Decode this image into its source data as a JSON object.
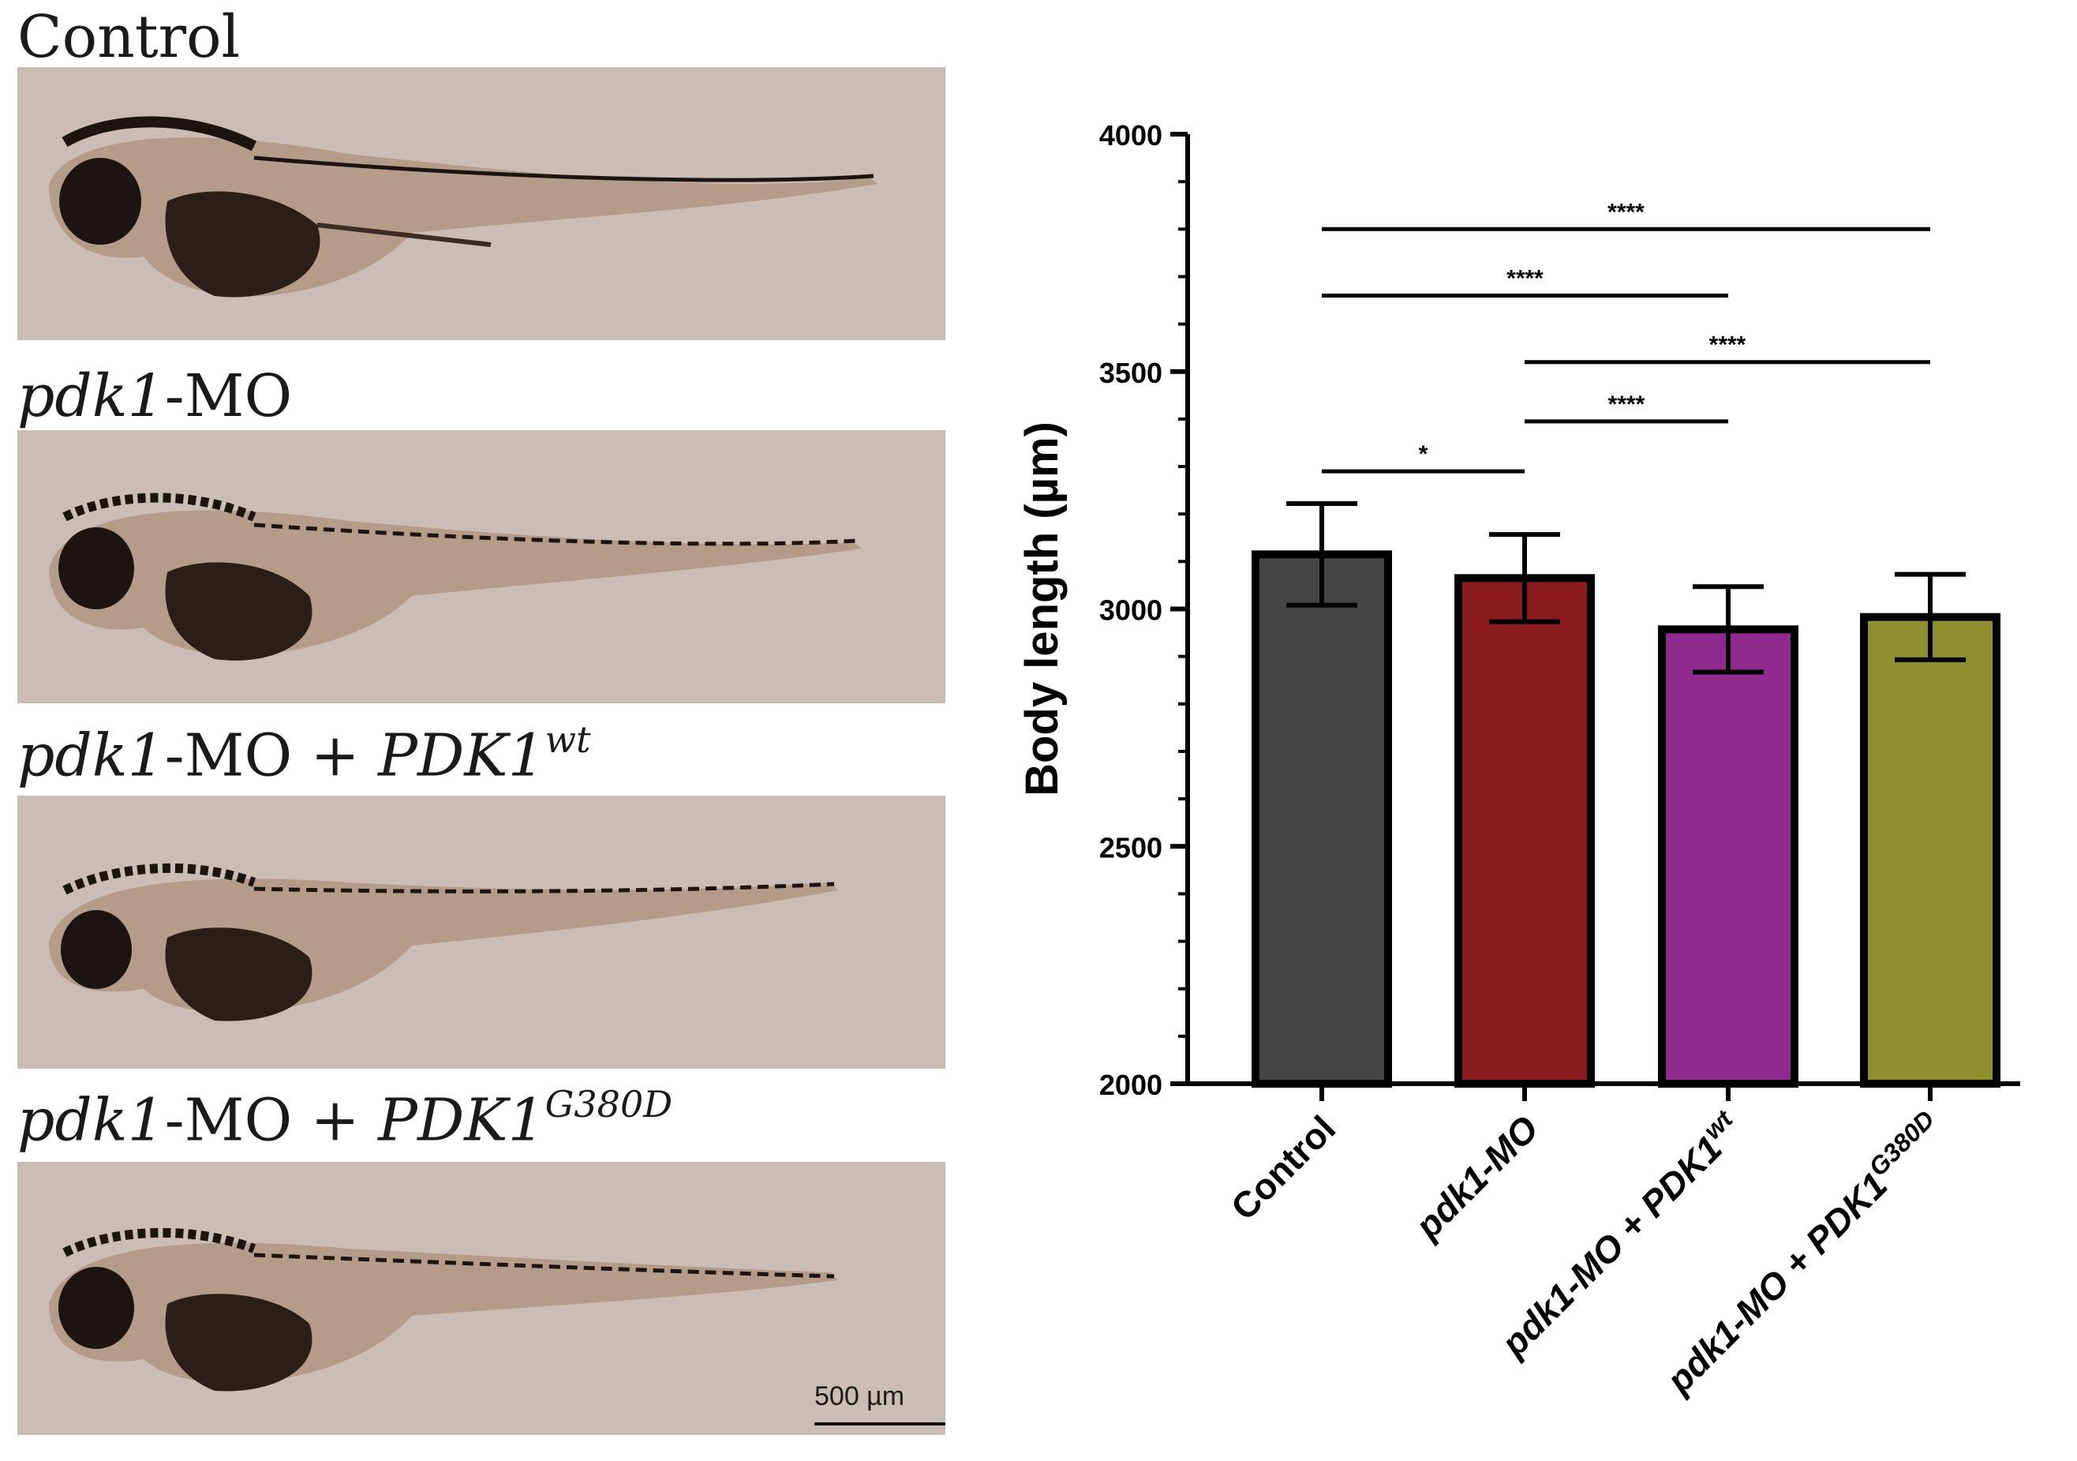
{
  "panels": [
    {
      "italic": "",
      "rest": "Control",
      "sup": ""
    },
    {
      "italic": "pdk1",
      "rest": "-MO",
      "sup": ""
    },
    {
      "italic": "pdk1",
      "rest": "-MO + ",
      "italic2": "PDK1",
      "sup": "wt"
    },
    {
      "italic": "pdk1",
      "rest": "-MO + ",
      "italic2": "PDK1",
      "sup": "G380D"
    }
  ],
  "scale_bar_label": "500 µm",
  "colors": {
    "micro_bg": "#cbbcb6",
    "embryo_dark": "#1b1410",
    "embryo_body": "#b09780"
  },
  "chart_data": {
    "type": "bar",
    "ylabel": "Body length  (µm)",
    "ylim": [
      2000,
      4000
    ],
    "yticks": [
      2000,
      2500,
      3000,
      3500,
      4000
    ],
    "categories": [
      {
        "main": "Control",
        "sup": ""
      },
      {
        "main": "pdk1-MO",
        "sup": ""
      },
      {
        "main": "pdk1-MO + PDK1",
        "sup": "wt"
      },
      {
        "main": "pdk1-MO + PDK1",
        "sup": "G380D"
      }
    ],
    "values": [
      3115,
      3065,
      2957,
      2983
    ],
    "errors": [
      107,
      92,
      90,
      90
    ],
    "colors": [
      "#454545",
      "#8b1a1f",
      "#8f2a8f",
      "#8e9030"
    ],
    "significance": [
      {
        "from": 0,
        "to": 3,
        "y": 3800,
        "label": "****"
      },
      {
        "from": 0,
        "to": 2,
        "y": 3660,
        "label": "****"
      },
      {
        "from": 1,
        "to": 3,
        "y": 3520,
        "label": "****"
      },
      {
        "from": 1,
        "to": 2,
        "y": 3395,
        "label": "****"
      },
      {
        "from": 0,
        "to": 1,
        "y": 3290,
        "label": "*"
      }
    ]
  }
}
